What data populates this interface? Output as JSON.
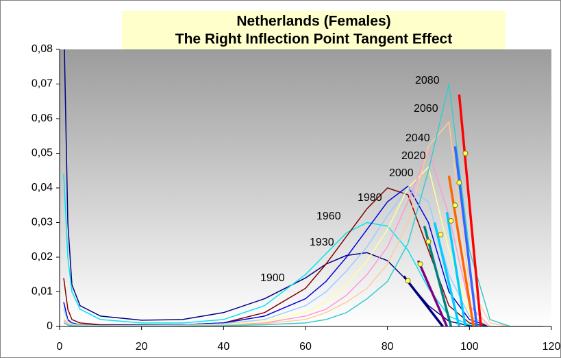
{
  "chart_data": {
    "type": "line",
    "title": "Netherlands (Females)",
    "subtitle": "The Right Inflection Point Tangent Effect",
    "x": [
      1,
      2,
      3,
      5,
      10,
      20,
      30,
      40,
      50,
      60,
      65,
      70,
      75,
      80,
      85,
      90,
      95,
      100,
      105,
      110,
      118
    ],
    "series": [
      {
        "name": "1900",
        "color": "#000080",
        "values": [
          0.09,
          0.03,
          0.012,
          0.006,
          0.003,
          0.0018,
          0.002,
          0.004,
          0.008,
          0.014,
          0.018,
          0.0205,
          0.0213,
          0.019,
          0.013,
          0.006,
          0.0015,
          0.0002,
          0,
          0,
          0
        ]
      },
      {
        "name": "1930",
        "color": "#00e5ee",
        "values": [
          0.044,
          0.02,
          0.01,
          0.005,
          0.002,
          0.001,
          0.001,
          0.002,
          0.006,
          0.015,
          0.021,
          0.027,
          0.03,
          0.029,
          0.022,
          0.011,
          0.003,
          0.0005,
          0,
          0,
          0
        ]
      },
      {
        "name": "1960",
        "color": "#800000",
        "values": [
          0.014,
          0.005,
          0.002,
          0.001,
          0.0005,
          0.0005,
          0.0005,
          0.001,
          0.004,
          0.011,
          0.018,
          0.026,
          0.034,
          0.04,
          0.038,
          0.022,
          0.006,
          0.001,
          0,
          0,
          0
        ]
      },
      {
        "name": "1980",
        "color": "#0000dd",
        "values": [
          0.007,
          0.002,
          0.001,
          0.0005,
          0.0003,
          0.0004,
          0.0005,
          0.001,
          0.003,
          0.008,
          0.013,
          0.02,
          0.028,
          0.036,
          0.0405,
          0.03,
          0.01,
          0.002,
          0,
          0,
          0
        ]
      },
      {
        "name": "2000",
        "color": "#99ccff",
        "values": [
          0.005,
          0.0015,
          0.0008,
          0.0004,
          0.0002,
          0.0003,
          0.0004,
          0.0008,
          0.002,
          0.006,
          0.01,
          0.016,
          0.023,
          0.032,
          0.04,
          0.036,
          0.015,
          0.003,
          0,
          0,
          0
        ]
      },
      {
        "name": "2020",
        "color": "#ffff99",
        "values": [
          0.003,
          0.001,
          0.0005,
          0.0003,
          0.0002,
          0.0002,
          0.0003,
          0.0006,
          0.0015,
          0.004,
          0.007,
          0.012,
          0.019,
          0.028,
          0.04,
          0.046,
          0.022,
          0.004,
          0,
          0,
          0
        ]
      },
      {
        "name": "2040",
        "color": "#ff99cc",
        "values": [
          0.002,
          0.0008,
          0.0004,
          0.0002,
          0.0001,
          0.0001,
          0.0002,
          0.0004,
          0.001,
          0.003,
          0.005,
          0.009,
          0.015,
          0.023,
          0.036,
          0.051,
          0.032,
          0.006,
          0,
          0,
          0
        ]
      },
      {
        "name": "2060",
        "color": "#ffcc99",
        "values": [
          0.0015,
          0.0006,
          0.0003,
          0.0002,
          0.0001,
          0.0001,
          0.0002,
          0.0003,
          0.0008,
          0.002,
          0.004,
          0.007,
          0.011,
          0.018,
          0.03,
          0.052,
          0.059,
          0.012,
          0.001,
          0,
          0
        ]
      },
      {
        "name": "2080",
        "color": "#33cccc",
        "values": [
          0.001,
          0.0004,
          0.0002,
          0.0001,
          0.0001,
          0.0001,
          0.0001,
          0.0002,
          0.0005,
          0.001,
          0.002,
          0.004,
          0.008,
          0.013,
          0.024,
          0.045,
          0.07,
          0.022,
          0.002,
          0,
          0
        ]
      }
    ],
    "tangents": [
      {
        "color": "#000080",
        "x": [
          84,
          93.5
        ],
        "values": [
          0.0145,
          0
        ]
      },
      {
        "color": "#800080",
        "x": [
          87.5,
          94.5
        ],
        "values": [
          0.019,
          0
        ]
      },
      {
        "color": "#008080",
        "x": [
          89,
          95.5
        ],
        "values": [
          0.029,
          0
        ]
      },
      {
        "color": "#00ccff",
        "x": [
          91.5,
          97.5
        ],
        "values": [
          0.03,
          0
        ]
      },
      {
        "color": "#00ccff",
        "x": [
          94.5,
          99
        ],
        "values": [
          0.033,
          0
        ]
      },
      {
        "color": "#ff6600",
        "x": [
          95,
          101
        ],
        "values": [
          0.0435,
          0
        ]
      },
      {
        "color": "#3366ff",
        "x": [
          96.5,
          101.8
        ],
        "values": [
          0.052,
          0
        ]
      },
      {
        "color": "#ff0000",
        "x": [
          97.5,
          102.8
        ],
        "values": [
          0.067,
          0
        ]
      }
    ],
    "inflection_points": {
      "color": "#ffff66",
      "x": [
        85,
        88,
        90,
        93,
        95.5,
        96.5,
        97.5,
        99
      ],
      "values": [
        0.0132,
        0.018,
        0.0245,
        0.0265,
        0.0305,
        0.035,
        0.0415,
        0.05
      ]
    },
    "xlim": [
      0,
      120
    ],
    "xticks": [
      0,
      20,
      40,
      60,
      80,
      100,
      120
    ],
    "ylim": [
      0,
      0.08
    ],
    "yticks": [
      0,
      {
        "value": 0.01,
        "label": "0,01"
      },
      {
        "value": 0.02,
        "label": "0,02"
      },
      {
        "value": 0.03,
        "label": "0,03"
      },
      {
        "value": 0.04,
        "label": "0,04"
      },
      {
        "value": 0.05,
        "label": "0,05"
      },
      {
        "value": 0.06,
        "label": "0,06"
      },
      {
        "value": 0.07,
        "label": "0,07"
      },
      {
        "value": 0.08,
        "label": "0,08"
      }
    ]
  }
}
